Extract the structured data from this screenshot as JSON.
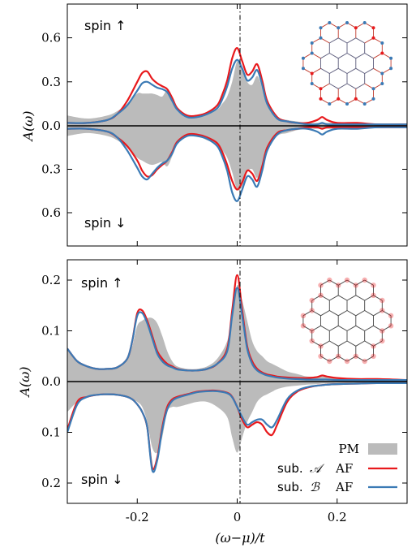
{
  "chart_data": [
    {
      "type": "line",
      "panel": "top",
      "ylabel": "A(ω)",
      "xlim": [
        -0.34,
        0.34
      ],
      "ylim_up": [
        0,
        0.83
      ],
      "ylim_down": [
        0,
        0.83
      ],
      "x_ticks": [
        -0.2,
        0,
        0.2
      ],
      "y_ticks_up": [
        "0.6",
        "0.3",
        "0.0"
      ],
      "y_ticks_down": [
        "0.3",
        "0.6"
      ],
      "label_up": "spin ↑",
      "label_down": "spin ↓",
      "inset": "honeycomb-lattice-nanoflake",
      "x": [
        -0.34,
        -0.3,
        -0.26,
        -0.24,
        -0.22,
        -0.2,
        -0.19,
        -0.18,
        -0.17,
        -0.16,
        -0.15,
        -0.14,
        -0.13,
        -0.12,
        -0.1,
        -0.08,
        -0.06,
        -0.04,
        -0.03,
        -0.02,
        -0.01,
        0,
        0.01,
        0.02,
        0.03,
        0.04,
        0.05,
        0.06,
        0.08,
        0.1,
        0.12,
        0.14,
        0.16,
        0.17,
        0.18,
        0.2,
        0.24,
        0.28,
        0.34
      ],
      "series": [
        {
          "color": "#bbbbbb",
          "sign": 1,
          "values": [
            0.07,
            0.05,
            0.07,
            0.1,
            0.15,
            0.22,
            0.22,
            0.22,
            0.22,
            0.21,
            0.2,
            0.24,
            0.17,
            0.1,
            0.06,
            0.06,
            0.08,
            0.11,
            0.15,
            0.2,
            0.3,
            0.44,
            0.4,
            0.3,
            0.28,
            0.34,
            0.26,
            0.15,
            0.06,
            0.04,
            0.03,
            0.02,
            0.02,
            0.02,
            0.02,
            0.02,
            0.02,
            0.01,
            0.01
          ]
        },
        {
          "color": "#bbbbbb",
          "sign": -1,
          "values": [
            0.07,
            0.05,
            0.07,
            0.1,
            0.15,
            0.22,
            0.24,
            0.26,
            0.27,
            0.26,
            0.25,
            0.28,
            0.21,
            0.12,
            0.07,
            0.07,
            0.1,
            0.13,
            0.17,
            0.22,
            0.32,
            0.44,
            0.42,
            0.32,
            0.3,
            0.36,
            0.28,
            0.17,
            0.07,
            0.05,
            0.03,
            0.02,
            0.02,
            0.02,
            0.02,
            0.02,
            0.02,
            0.01,
            0.01
          ]
        },
        {
          "name": "sub. 𝒜 AF up",
          "color": "#e8191c",
          "sign": 1,
          "values": [
            0.02,
            0.02,
            0.04,
            0.08,
            0.17,
            0.3,
            0.36,
            0.37,
            0.32,
            0.29,
            0.27,
            0.25,
            0.19,
            0.12,
            0.07,
            0.07,
            0.09,
            0.14,
            0.21,
            0.31,
            0.46,
            0.53,
            0.44,
            0.35,
            0.37,
            0.42,
            0.31,
            0.17,
            0.06,
            0.03,
            0.02,
            0.02,
            0.04,
            0.06,
            0.04,
            0.02,
            0.02,
            0.01,
            0.01
          ]
        },
        {
          "name": "sub. ℬ AF up",
          "color": "#3b7ab5",
          "sign": 1,
          "values": [
            0.02,
            0.02,
            0.04,
            0.08,
            0.14,
            0.24,
            0.29,
            0.3,
            0.28,
            0.26,
            0.25,
            0.23,
            0.17,
            0.11,
            0.06,
            0.06,
            0.08,
            0.12,
            0.18,
            0.27,
            0.39,
            0.45,
            0.39,
            0.31,
            0.33,
            0.38,
            0.28,
            0.15,
            0.05,
            0.03,
            0.02,
            0.01,
            0.01,
            0.02,
            0.01,
            0.01,
            0.01,
            0.01,
            0.01
          ]
        },
        {
          "name": "sub. 𝒜 AF down",
          "color": "#e8191c",
          "sign": -1,
          "values": [
            0.02,
            0.02,
            0.04,
            0.08,
            0.14,
            0.24,
            0.31,
            0.35,
            0.34,
            0.3,
            0.27,
            0.24,
            0.18,
            0.11,
            0.06,
            0.06,
            0.08,
            0.12,
            0.18,
            0.27,
            0.38,
            0.44,
            0.39,
            0.31,
            0.33,
            0.38,
            0.28,
            0.15,
            0.05,
            0.03,
            0.02,
            0.01,
            0.01,
            0.02,
            0.01,
            0.01,
            0.01,
            0.01,
            0.01
          ]
        },
        {
          "name": "sub. ℬ AF down",
          "color": "#3b7ab5",
          "sign": -1,
          "values": [
            0.02,
            0.02,
            0.04,
            0.08,
            0.17,
            0.29,
            0.35,
            0.37,
            0.33,
            0.29,
            0.26,
            0.24,
            0.19,
            0.12,
            0.07,
            0.07,
            0.09,
            0.14,
            0.21,
            0.31,
            0.46,
            0.52,
            0.44,
            0.35,
            0.37,
            0.42,
            0.31,
            0.17,
            0.06,
            0.03,
            0.02,
            0.02,
            0.04,
            0.06,
            0.04,
            0.02,
            0.02,
            0.01,
            0.01
          ]
        }
      ]
    },
    {
      "type": "line",
      "panel": "bottom",
      "ylabel": "A(ω)",
      "xlabel": "(ω−μ)/t",
      "xlim": [
        -0.34,
        0.34
      ],
      "ylim_up": [
        0,
        0.24
      ],
      "ylim_down": [
        0,
        0.24
      ],
      "x_ticks": [
        "-0.2",
        "0",
        "0.2"
      ],
      "y_ticks_up": [
        "0.2",
        "0.1",
        "0.0"
      ],
      "y_ticks_down": [
        "0.1",
        "0.2"
      ],
      "label_up": "spin ↑",
      "label_down": "spin ↓",
      "inset": "honeycomb-lattice-nanoflake",
      "x": [
        -0.34,
        -0.32,
        -0.3,
        -0.28,
        -0.26,
        -0.24,
        -0.22,
        -0.21,
        -0.2,
        -0.19,
        -0.18,
        -0.17,
        -0.16,
        -0.15,
        -0.14,
        -0.13,
        -0.12,
        -0.1,
        -0.08,
        -0.06,
        -0.04,
        -0.02,
        -0.01,
        0,
        0.01,
        0.02,
        0.03,
        0.04,
        0.05,
        0.06,
        0.07,
        0.08,
        0.1,
        0.12,
        0.14,
        0.16,
        0.17,
        0.18,
        0.2,
        0.24,
        0.28,
        0.34
      ],
      "series": [
        {
          "color": "#bbbbbb",
          "sign": 1,
          "values": [
            0.065,
            0.04,
            0.03,
            0.025,
            0.025,
            0.03,
            0.045,
            0.07,
            0.11,
            0.12,
            0.125,
            0.125,
            0.115,
            0.09,
            0.06,
            0.04,
            0.03,
            0.025,
            0.025,
            0.03,
            0.045,
            0.08,
            0.13,
            0.19,
            0.16,
            0.12,
            0.08,
            0.06,
            0.05,
            0.04,
            0.035,
            0.03,
            0.02,
            0.015,
            0.01,
            0.01,
            0.01,
            0.01,
            0.008,
            0.006,
            0.004,
            0.003
          ]
        },
        {
          "color": "#bbbbbb",
          "sign": -1,
          "values": [
            0.06,
            0.04,
            0.03,
            0.025,
            0.025,
            0.025,
            0.03,
            0.035,
            0.04,
            0.05,
            0.08,
            0.13,
            0.14,
            0.11,
            0.06,
            0.05,
            0.05,
            0.045,
            0.04,
            0.04,
            0.05,
            0.07,
            0.11,
            0.14,
            0.11,
            0.08,
            0.06,
            0.04,
            0.03,
            0.025,
            0.02,
            0.015,
            0.01,
            0.008,
            0.006,
            0.005,
            0.004,
            0.004,
            0.003,
            0.003,
            0.002,
            0.002
          ]
        },
        {
          "name": "sub. 𝒜 AF up",
          "color": "#e8191c",
          "sign": 1,
          "values": [
            0.065,
            0.04,
            0.03,
            0.025,
            0.025,
            0.028,
            0.045,
            0.08,
            0.135,
            0.14,
            0.12,
            0.09,
            0.06,
            0.045,
            0.035,
            0.03,
            0.025,
            0.022,
            0.022,
            0.025,
            0.035,
            0.065,
            0.14,
            0.21,
            0.14,
            0.07,
            0.04,
            0.025,
            0.018,
            0.014,
            0.012,
            0.01,
            0.008,
            0.007,
            0.007,
            0.009,
            0.012,
            0.01,
            0.007,
            0.005,
            0.005,
            0.003
          ]
        },
        {
          "name": "sub. ℬ AF up",
          "color": "#3b7ab5",
          "sign": 1,
          "values": [
            0.065,
            0.04,
            0.03,
            0.025,
            0.025,
            0.028,
            0.045,
            0.08,
            0.13,
            0.135,
            0.115,
            0.085,
            0.055,
            0.04,
            0.032,
            0.028,
            0.024,
            0.022,
            0.022,
            0.025,
            0.035,
            0.06,
            0.13,
            0.185,
            0.13,
            0.065,
            0.035,
            0.022,
            0.016,
            0.012,
            0.01,
            0.008,
            0.006,
            0.005,
            0.004,
            0.004,
            0.004,
            0.004,
            0.003,
            0.003,
            0.003,
            0.003
          ]
        },
        {
          "name": "sub. 𝒜 AF down",
          "color": "#e8191c",
          "sign": -1,
          "values": [
            0.095,
            0.04,
            0.03,
            0.026,
            0.025,
            0.026,
            0.03,
            0.035,
            0.045,
            0.06,
            0.09,
            0.17,
            0.15,
            0.09,
            0.05,
            0.035,
            0.03,
            0.025,
            0.02,
            0.018,
            0.018,
            0.022,
            0.03,
            0.05,
            0.075,
            0.09,
            0.085,
            0.08,
            0.085,
            0.1,
            0.105,
            0.085,
            0.04,
            0.02,
            0.012,
            0.008,
            0.007,
            0.006,
            0.005,
            0.004,
            0.003,
            0.003
          ]
        },
        {
          "name": "sub. ℬ AF down",
          "color": "#3b7ab5",
          "sign": -1,
          "values": [
            0.1,
            0.045,
            0.03,
            0.026,
            0.025,
            0.026,
            0.03,
            0.035,
            0.045,
            0.06,
            0.09,
            0.175,
            0.155,
            0.095,
            0.055,
            0.038,
            0.032,
            0.026,
            0.021,
            0.019,
            0.019,
            0.023,
            0.031,
            0.05,
            0.07,
            0.085,
            0.08,
            0.075,
            0.075,
            0.085,
            0.09,
            0.075,
            0.035,
            0.018,
            0.011,
            0.008,
            0.007,
            0.006,
            0.005,
            0.004,
            0.003,
            0.003
          ]
        }
      ]
    }
  ],
  "legend": [
    {
      "label": "PM",
      "kind": "fill",
      "color": "#bbbbbb"
    },
    {
      "prefix": "sub.",
      "glyph": "𝒜",
      "suffix": "AF",
      "kind": "line",
      "color": "#e8191c"
    },
    {
      "prefix": "sub.",
      "glyph": "ℬ",
      "suffix": "AF",
      "kind": "line",
      "color": "#3b7ab5"
    }
  ],
  "colors": {
    "pm": "#bbbbbb",
    "sub_a": "#e8191c",
    "sub_b": "#3b7ab5"
  }
}
